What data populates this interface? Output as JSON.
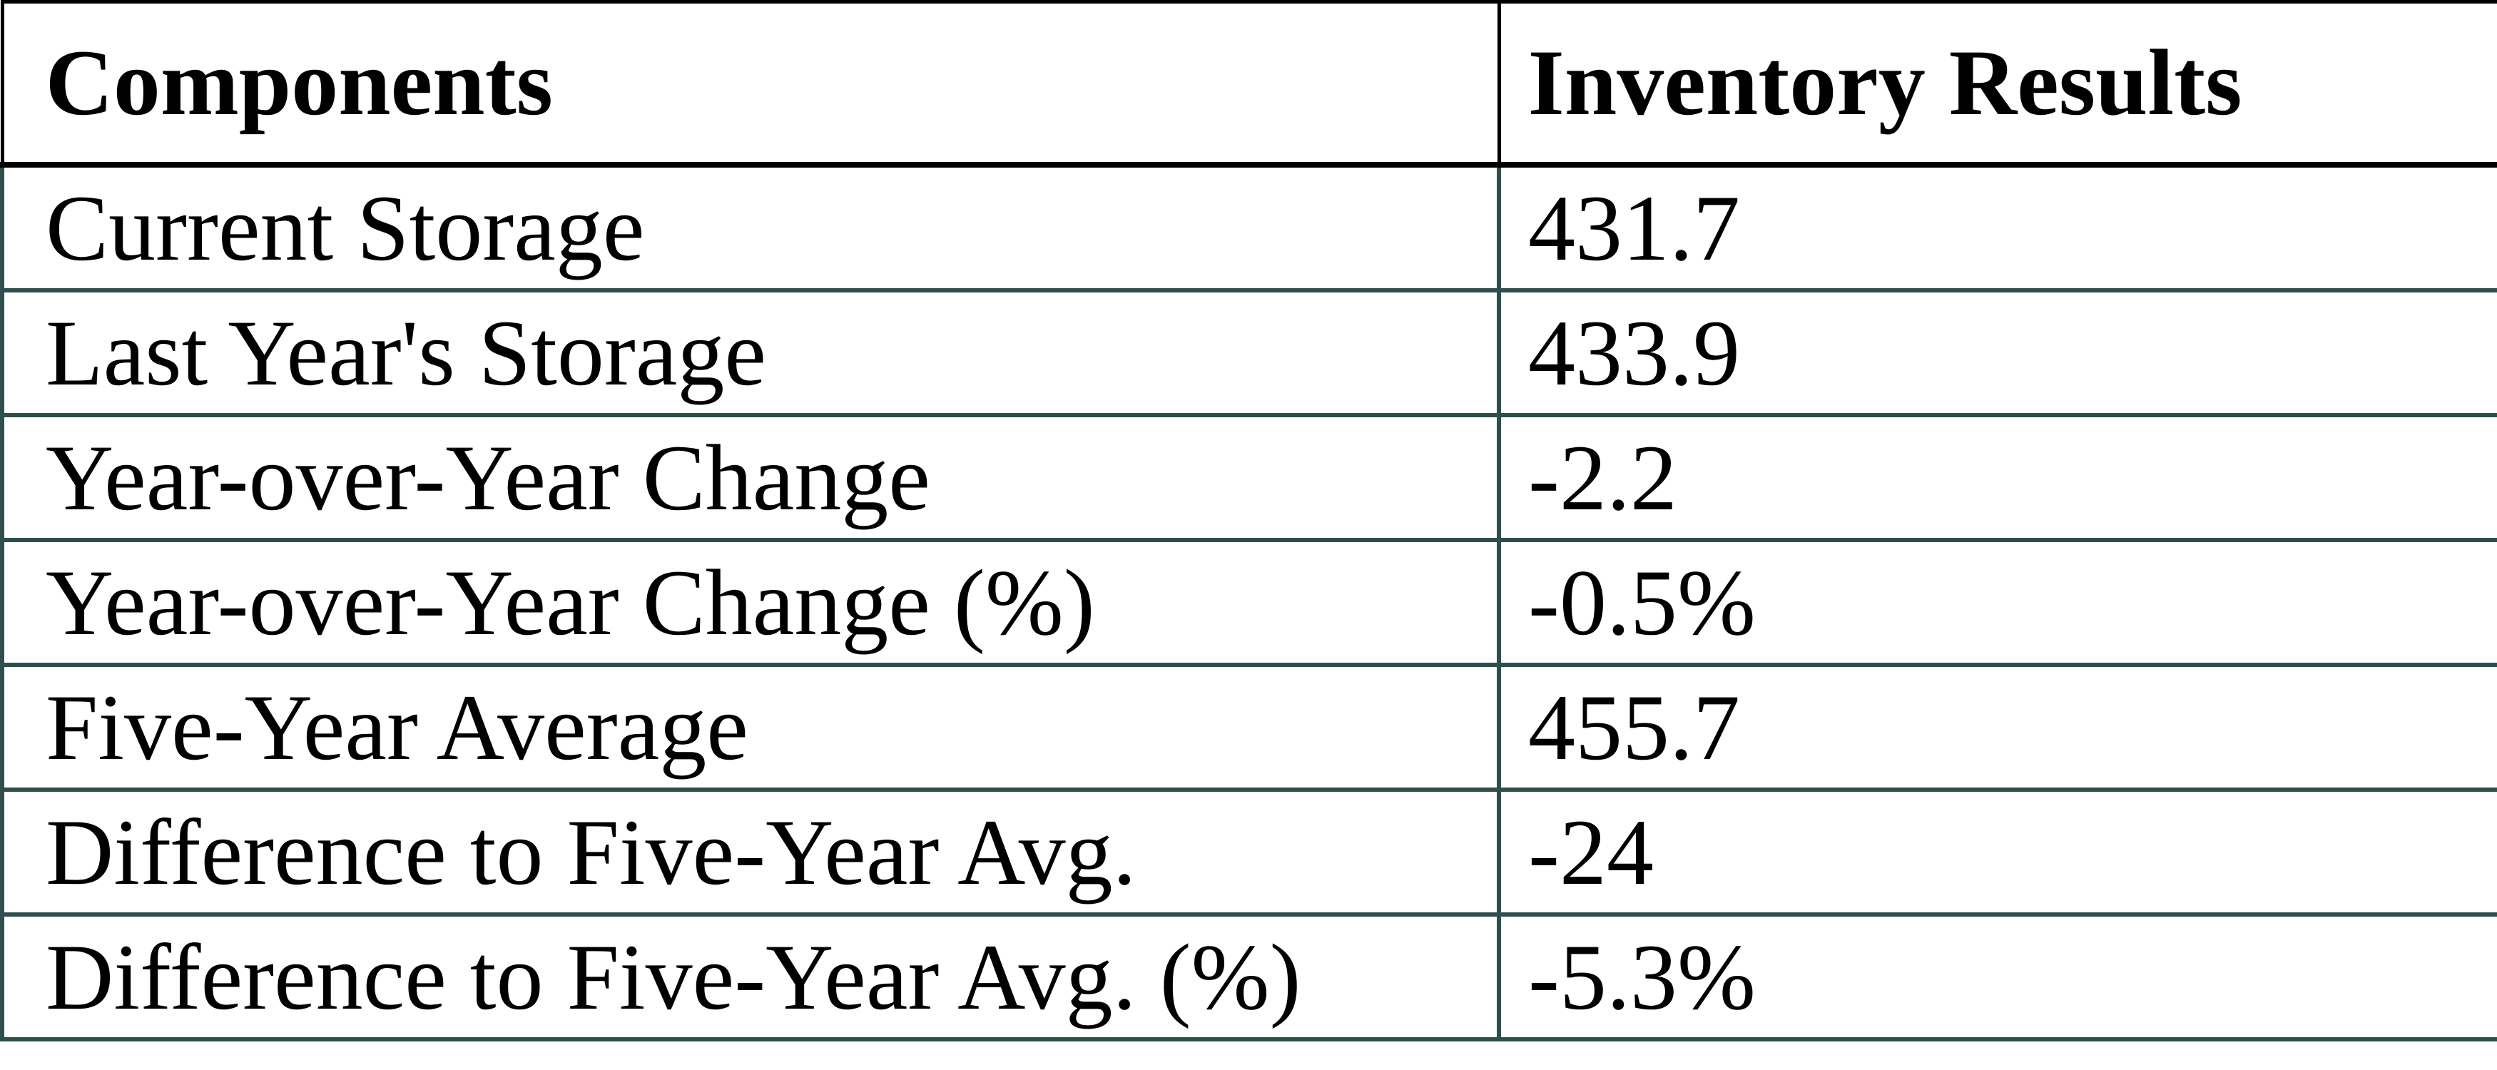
{
  "table": {
    "header": {
      "col1": "Components",
      "col2": "Inventory Results"
    },
    "rows": [
      {
        "label": "Current Storage",
        "value": "431.7"
      },
      {
        "label": "Last Year's Storage",
        "value": "433.9"
      },
      {
        "label": "Year-over-Year Change",
        "value": "-2.2"
      },
      {
        "label": "Year-over-Year Change (%)",
        "value": "-0.5%"
      },
      {
        "label": "Five-Year Average",
        "value": "455.7"
      },
      {
        "label": "Difference to Five-Year Avg.",
        "value": "-24"
      },
      {
        "label": "Difference to Five-Year Avg. (%)",
        "value": "-5.3%"
      }
    ],
    "colors": {
      "header_border": "#000000",
      "body_border": "#2F4F4F",
      "text": "#000000",
      "background": "#FFFFFF"
    }
  }
}
